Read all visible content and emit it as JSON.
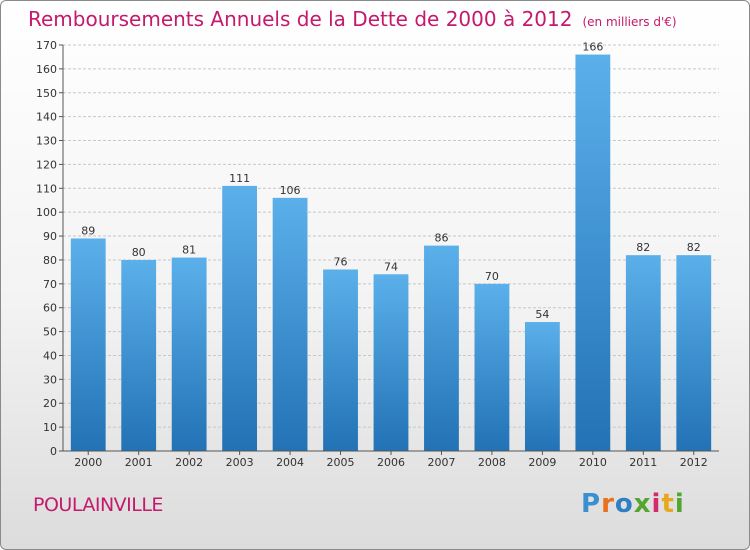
{
  "header": {
    "title": "Remboursements Annuels de la Dette de 2000 à 2012",
    "unit": "(en milliers d'€)"
  },
  "footer": {
    "place": "POULAINVILLE",
    "logo": "Proxiti",
    "logo_letter_colors": [
      "#3a8fd0",
      "#e8711c",
      "#2f7fc4",
      "#55a630",
      "#d32b6b",
      "#e8a81c",
      "#55a630"
    ]
  },
  "colors": {
    "bar_top": "#5bb0ea",
    "bar_bottom": "#2272b5",
    "grid": "#c7c7c7",
    "axis": "#555555",
    "title": "#c4196c"
  },
  "chart_data": {
    "type": "bar",
    "categories": [
      "2000",
      "2001",
      "2002",
      "2003",
      "2004",
      "2005",
      "2006",
      "2007",
      "2008",
      "2009",
      "2010",
      "2011",
      "2012"
    ],
    "values": [
      89,
      80,
      81,
      111,
      106,
      76,
      74,
      86,
      70,
      54,
      166,
      82,
      82
    ],
    "title": "Remboursements Annuels de la Dette de 2000 à 2012",
    "xlabel": "",
    "ylabel": "",
    "ylim": [
      0,
      170
    ],
    "yticks": [
      0,
      10,
      20,
      30,
      40,
      50,
      60,
      70,
      80,
      90,
      100,
      110,
      120,
      130,
      140,
      150,
      160,
      170
    ],
    "grid": true,
    "data_labels": true
  }
}
